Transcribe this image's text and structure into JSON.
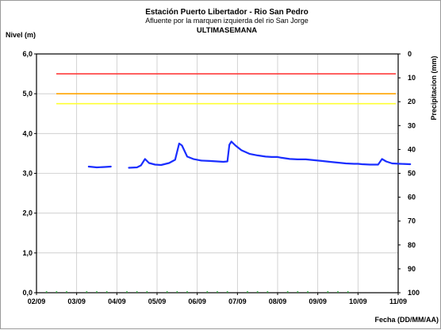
{
  "chart_data": {
    "type": "line",
    "title": "Estación Puerto Libertador - Rio San Pedro",
    "subtitle": "Afluente por la marquen izquierda del rio San Jorge",
    "subtitle2": "ULTIMASEMANA",
    "ylabel": "Nivel (m)",
    "y2label": "Precipitacion (mm)",
    "xlabel": "Fecha (DD/MM/AA)",
    "ylim": [
      0,
      6
    ],
    "y2lim": [
      0,
      100
    ],
    "y_ticks": [
      "0,0",
      "1,0",
      "2,0",
      "3,0",
      "4,0",
      "5,0",
      "6,0"
    ],
    "y2_ticks": [
      "0",
      "10",
      "20",
      "30",
      "40",
      "50",
      "60",
      "70",
      "80",
      "90",
      "100"
    ],
    "x_ticks": [
      "02/09",
      "03/09",
      "04/09",
      "05/09",
      "06/09",
      "07/09",
      "08/09",
      "09/09",
      "10/09",
      "11/09"
    ],
    "grid": true,
    "thresholds": [
      {
        "level": 5.5,
        "color": "#ff3b3b"
      },
      {
        "level": 5.0,
        "color": "#ffa500"
      },
      {
        "level": 4.75,
        "color": "#ffff33"
      }
    ],
    "series": [
      {
        "color": "#1a2eff",
        "points": [
          [
            1.0,
            3.19
          ],
          [
            1.3,
            3.17
          ],
          [
            1.5,
            3.15
          ],
          [
            1.7,
            3.16
          ],
          [
            1.85,
            3.17
          ],
          [
            2.3,
            3.14
          ],
          [
            2.5,
            3.15
          ],
          [
            2.6,
            3.2
          ],
          [
            2.7,
            3.36
          ],
          [
            2.8,
            3.26
          ],
          [
            2.95,
            3.22
          ],
          [
            3.1,
            3.21
          ],
          [
            3.3,
            3.26
          ],
          [
            3.45,
            3.34
          ],
          [
            3.55,
            3.75
          ],
          [
            3.62,
            3.7
          ],
          [
            3.75,
            3.42
          ],
          [
            3.9,
            3.36
          ],
          [
            4.1,
            3.32
          ],
          [
            4.3,
            3.31
          ],
          [
            4.5,
            3.3
          ],
          [
            4.65,
            3.29
          ],
          [
            4.75,
            3.3
          ],
          [
            4.8,
            3.72
          ],
          [
            4.85,
            3.8
          ],
          [
            4.95,
            3.7
          ],
          [
            5.1,
            3.58
          ],
          [
            5.3,
            3.49
          ],
          [
            5.5,
            3.45
          ],
          [
            5.7,
            3.42
          ],
          [
            5.85,
            3.41
          ],
          [
            6.0,
            3.41
          ],
          [
            6.1,
            3.39
          ],
          [
            6.3,
            3.36
          ],
          [
            6.5,
            3.35
          ],
          [
            6.7,
            3.35
          ],
          [
            6.9,
            3.33
          ],
          [
            7.1,
            3.31
          ],
          [
            7.3,
            3.29
          ],
          [
            7.5,
            3.27
          ],
          [
            7.7,
            3.25
          ],
          [
            7.9,
            3.24
          ],
          [
            8.0,
            3.24
          ],
          [
            8.1,
            3.23
          ],
          [
            8.3,
            3.22
          ],
          [
            8.5,
            3.22
          ],
          [
            8.6,
            3.36
          ],
          [
            8.7,
            3.3
          ],
          [
            8.85,
            3.25
          ],
          [
            9.05,
            3.24
          ],
          [
            9.3,
            3.23
          ]
        ]
      }
    ]
  }
}
